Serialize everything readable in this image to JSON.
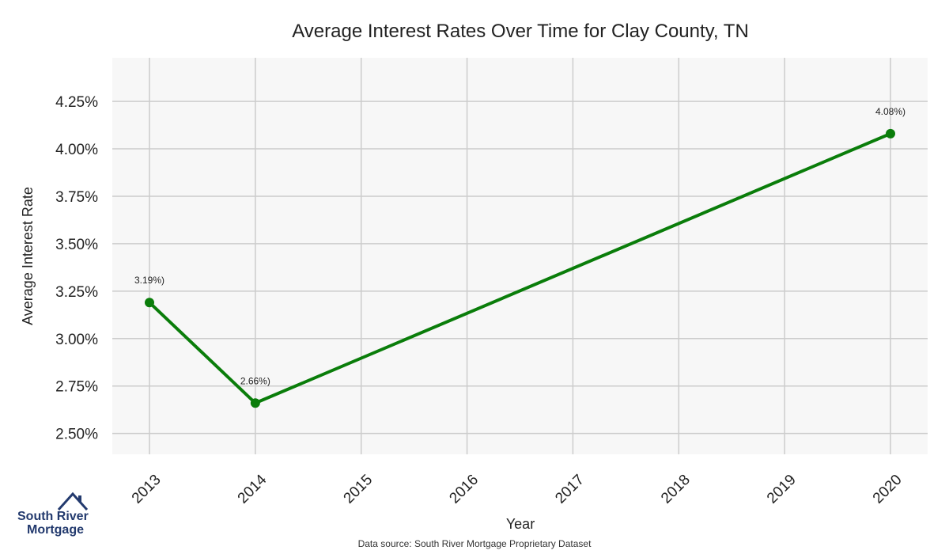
{
  "chart_data": {
    "type": "line",
    "title": "Average Interest Rates Over Time for Clay County, TN",
    "xlabel": "Year",
    "ylabel": "Average Interest Rate",
    "categories": [
      "2013",
      "2014",
      "2015",
      "2016",
      "2017",
      "2018",
      "2019",
      "2020"
    ],
    "series": [
      {
        "x": [
          "2013",
          "2014",
          "2020"
        ],
        "values": [
          3.19,
          2.66,
          4.08
        ],
        "labels": [
          "3.19%)",
          "2.66%)",
          "4.08%)"
        ],
        "color": "#0a7d0a"
      }
    ],
    "yticks": [
      2.5,
      2.75,
      3.0,
      3.25,
      3.5,
      3.75,
      4.0,
      4.25
    ],
    "ytick_labels": [
      "2.50%",
      "2.75%",
      "3.00%",
      "3.25%",
      "3.50%",
      "3.75%",
      "4.00%",
      "4.25%"
    ],
    "ylim": [
      2.39,
      4.48
    ],
    "grid": true,
    "background": "#f7f7f7",
    "grid_color": "#cccccc"
  },
  "logo": {
    "line1": "South River",
    "line2": "Mortgage",
    "color": "#233a6e",
    "icon": "house-roof-icon"
  },
  "footer": {
    "source": "Data source: South River Mortgage Proprietary Dataset"
  }
}
